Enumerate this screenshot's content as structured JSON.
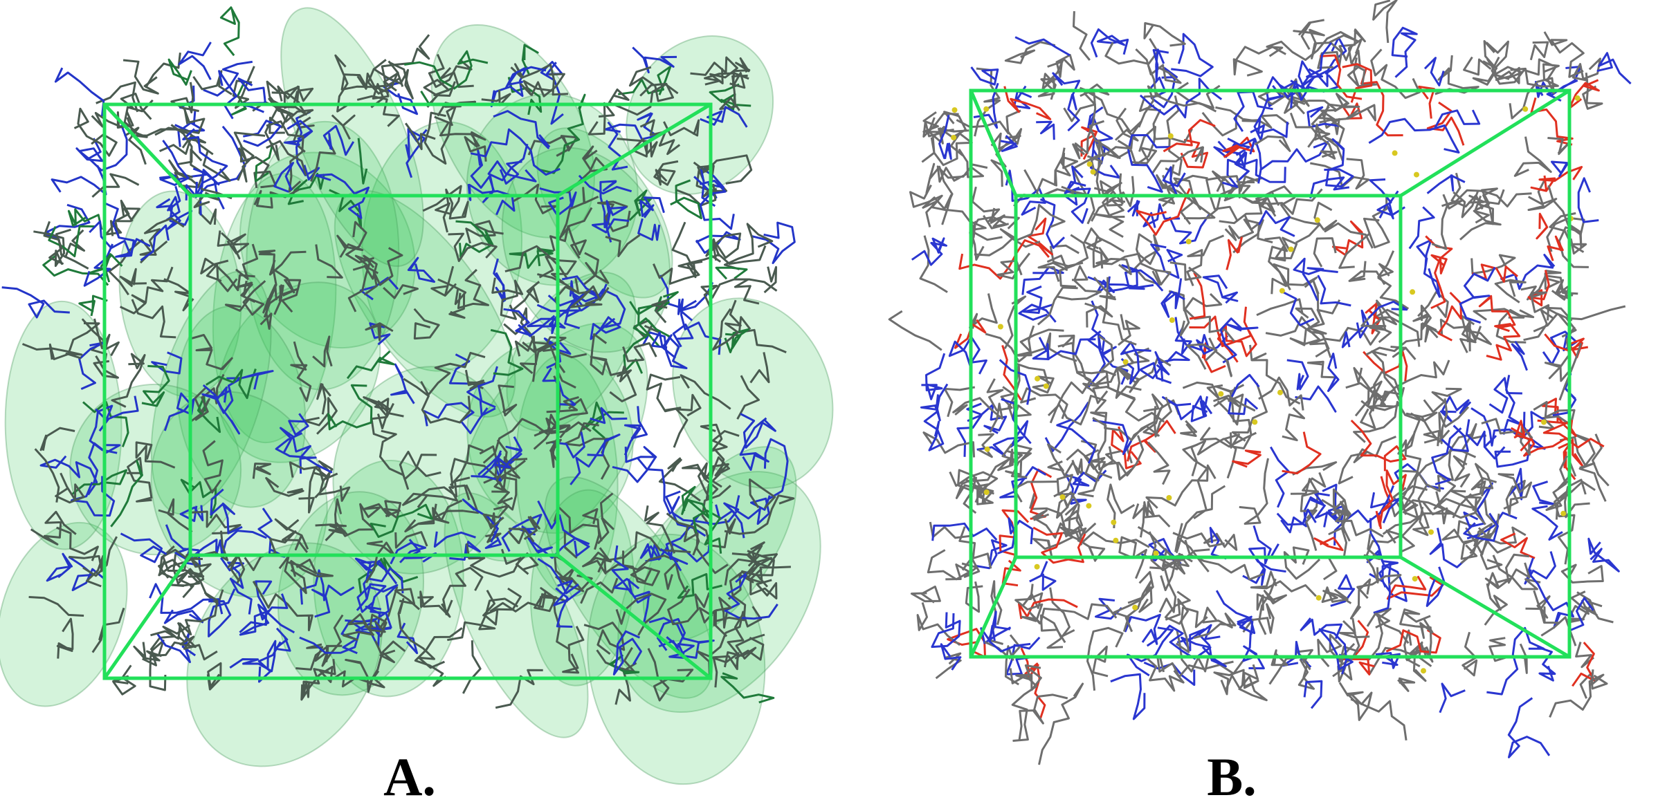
{
  "panels": [
    {
      "label": "A."
    },
    {
      "label": "B."
    }
  ]
}
